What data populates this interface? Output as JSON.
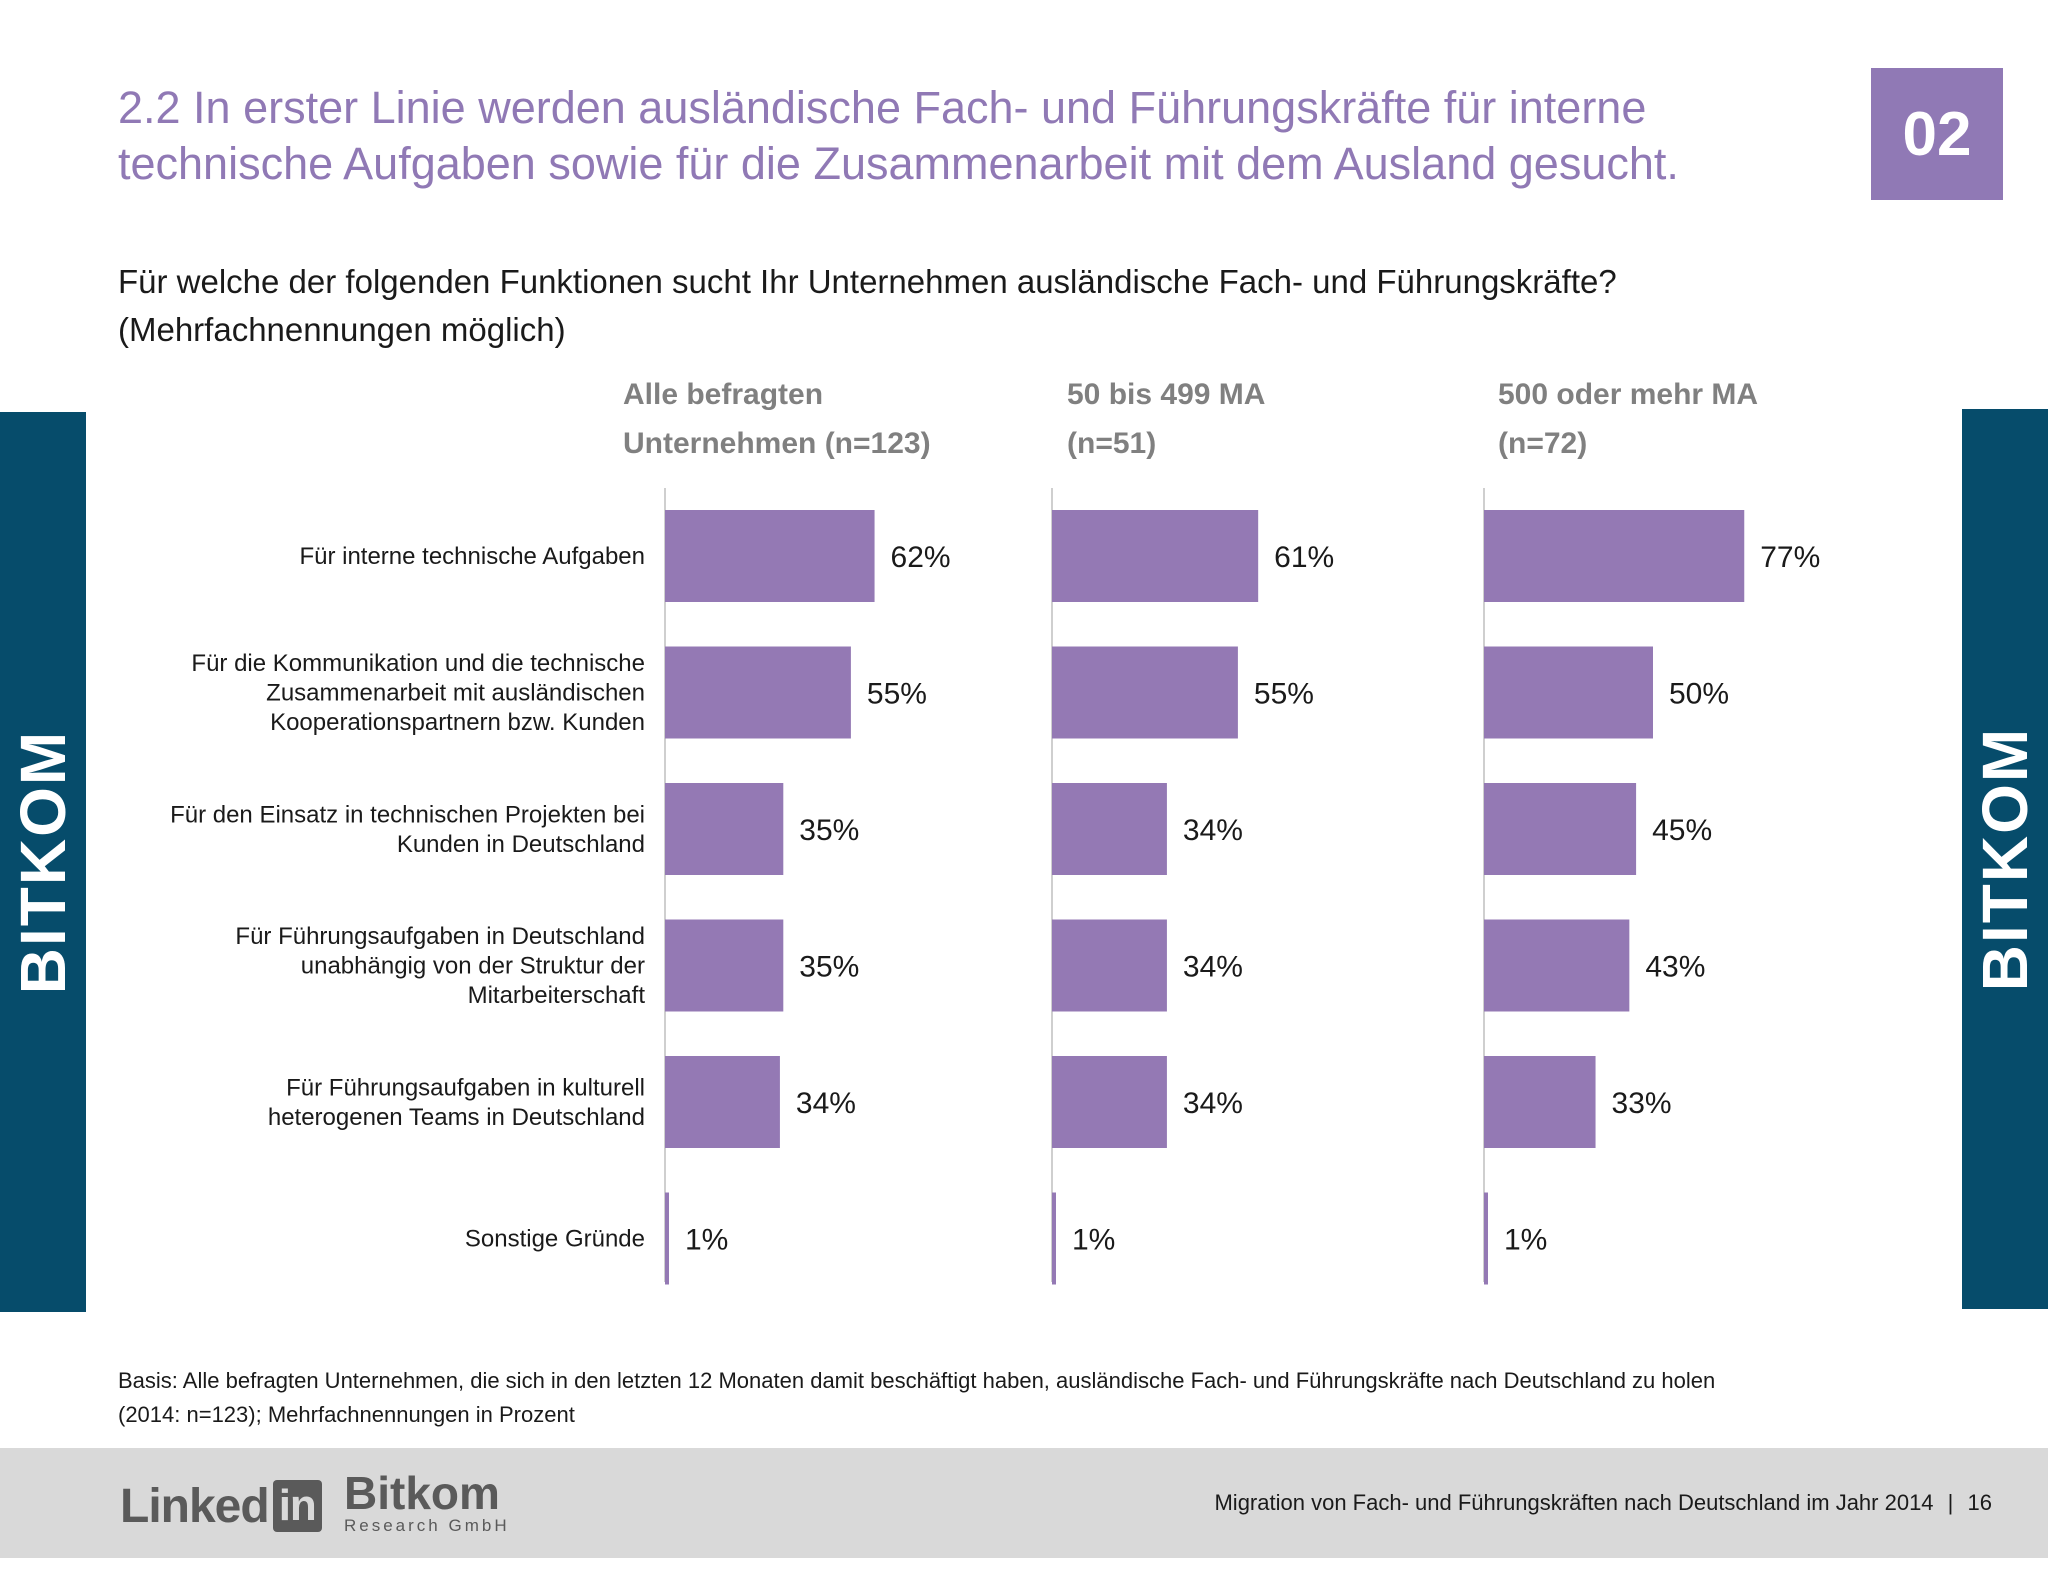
{
  "header": {
    "title": "2.2 In erster Linie werden ausländische Fach- und Führungskräfte für interne technische Aufgaben sowie für die Zusammenarbeit mit dem Ausland gesucht.",
    "section_number": "02"
  },
  "question": {
    "line1": "Für welche der folgenden Funktionen sucht Ihr Unternehmen ausländische Fach- und Führungskräfte?",
    "line2": "(Mehrfachnennungen möglich)"
  },
  "side_label": "BITKOM",
  "colors": {
    "accent": "#9079b5",
    "bar": "#9479b4",
    "side_band": "#064c6b",
    "footer_bg": "#d9d9d9",
    "panel_header": "#808080"
  },
  "chart_data": {
    "type": "bar",
    "orientation": "horizontal",
    "categories": [
      "Für interne technische Aufgaben",
      "Für die Kommunikation und die technische Zusammenarbeit mit ausländischen Kooperationspartnern bzw. Kunden",
      "Für den Einsatz in technischen Projekten bei Kunden in Deutschland",
      "Für Führungsaufgaben in Deutschland unabhängig von der Struktur der Mitarbeiterschaft",
      "Für Führungsaufgaben in kulturell heterogenen Teams in Deutschland",
      "Sonstige Gründe"
    ],
    "category_lines": [
      [
        "Für interne technische Aufgaben"
      ],
      [
        "Für die Kommunikation und die technische",
        "Zusammenarbeit mit ausländischen",
        "Kooperationspartnern bzw. Kunden"
      ],
      [
        "Für den Einsatz in technischen Projekten bei",
        "Kunden in Deutschland"
      ],
      [
        "Für Führungsaufgaben in Deutschland",
        "unabhängig von der Struktur der",
        "Mitarbeiterschaft"
      ],
      [
        "Für Führungsaufgaben in kulturell",
        "heterogenen Teams in Deutschland"
      ],
      [
        "Sonstige Gründe"
      ]
    ],
    "unit": "%",
    "series": [
      {
        "name": "Alle befragten Unternehmen (n=123)",
        "header_lines": [
          "Alle befragten",
          "Unternehmen (n=123)"
        ],
        "values": [
          62,
          55,
          35,
          35,
          34,
          1
        ],
        "labels": [
          "62%",
          "55%",
          "35%",
          "35%",
          "34%",
          "1%"
        ]
      },
      {
        "name": "50 bis 499 MA (n=51)",
        "header_lines": [
          "50 bis 499 MA",
          "(n=51)"
        ],
        "values": [
          61,
          55,
          34,
          34,
          34,
          1
        ],
        "labels": [
          "61%",
          "55%",
          "34%",
          "34%",
          "34%",
          "1%"
        ]
      },
      {
        "name": "500 oder mehr MA (n=72)",
        "header_lines": [
          "500 oder mehr MA",
          "(n=72)"
        ],
        "values": [
          77,
          50,
          45,
          43,
          33,
          1
        ],
        "labels": [
          "77%",
          "50%",
          "45%",
          "43%",
          "33%",
          "1%"
        ]
      }
    ]
  },
  "footnote": {
    "line1": "Basis: Alle befragten Unternehmen, die sich in den letzten 12 Monaten damit beschäftigt haben, ausländische Fach- und Führungskräfte nach Deutschland zu holen",
    "line2": "(2014: n=123); Mehrfachnennungen in Prozent"
  },
  "footer": {
    "logo_linkedin_text": "Linked",
    "logo_linkedin_box": "in",
    "logo_bitkom_text": "Bitkom",
    "logo_bitkom_sub": "Research GmbH",
    "report_title": "Migration von Fach- und Führungskräften nach Deutschland im Jahr 2014",
    "separator": "|",
    "page_number": "16"
  }
}
